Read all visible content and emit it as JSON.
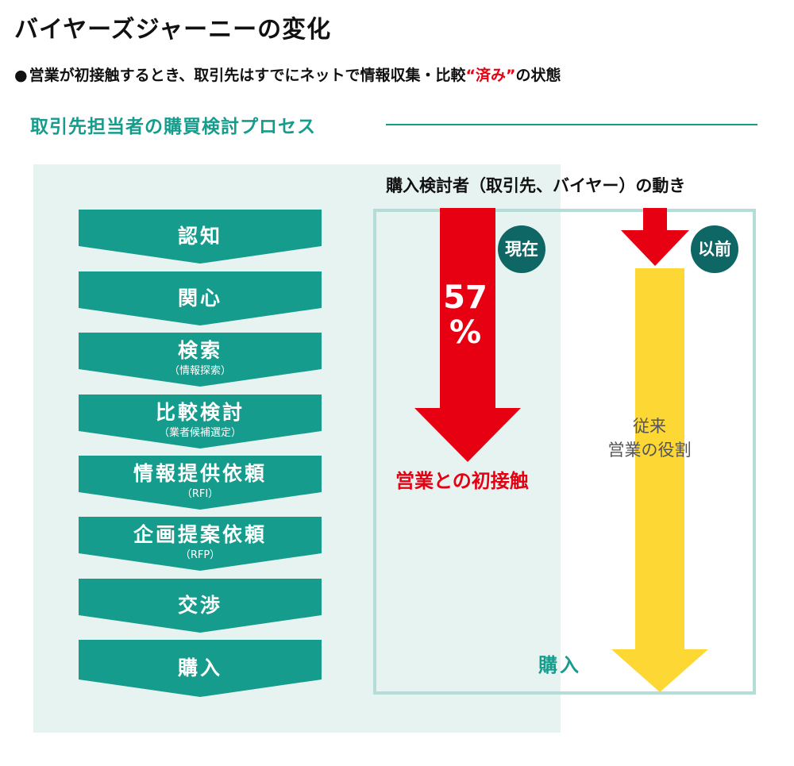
{
  "title": "バイヤーズジャーニーの変化",
  "subtitle": {
    "bullet": "●",
    "before": "営業が初接触するとき、取引先はすでにネットで情報収集・比較",
    "accent": "“済み”",
    "after": "の状態"
  },
  "section_title": "取引先担当者の購買検討プロセス",
  "buyer_label": "購入検討者（取引先、バイヤー）の動き",
  "steps": [
    {
      "label": "認知",
      "sub": ""
    },
    {
      "label": "関心",
      "sub": ""
    },
    {
      "label": "検索",
      "sub": "（情報探索）"
    },
    {
      "label": "比較検討",
      "sub": "（業者候補選定）"
    },
    {
      "label": "情報提供依頼",
      "sub": "（RFI）"
    },
    {
      "label": "企画提案依頼",
      "sub": "（RFP）"
    },
    {
      "label": "交渉",
      "sub": ""
    },
    {
      "label": "購入",
      "sub": ""
    }
  ],
  "current": {
    "badge": "現在",
    "percent_value": "57",
    "percent_sign": "%",
    "label": "営業との初接触"
  },
  "previous": {
    "badge": "以前",
    "label_line1": "従来",
    "label_line2": "営業の役割"
  },
  "purchase_label": "購入",
  "colors": {
    "teal": "#169c8c",
    "dark_teal": "#0e6665",
    "red": "#e60012",
    "yellow": "#fdd835",
    "panel": "#e6f3f1",
    "frame": "#b5ddd7"
  }
}
